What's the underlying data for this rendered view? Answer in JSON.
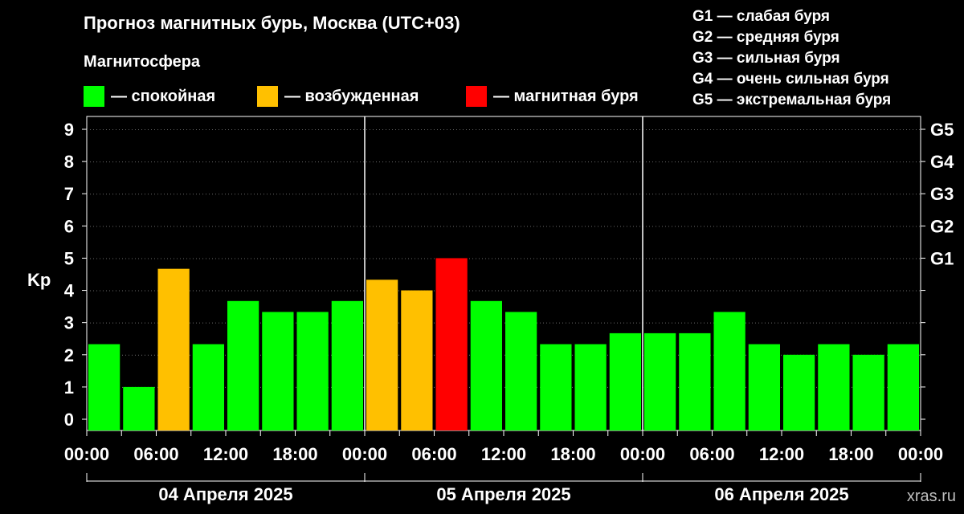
{
  "title": "Прогноз магнитных бурь, Москва (UTC+03)",
  "subtitle": "Магнитосфера",
  "legend": [
    {
      "label": "— спокойная",
      "color": "#00ff00"
    },
    {
      "label": "— возбужденная",
      "color": "#ffc000"
    },
    {
      "label": "— магнитная буря",
      "color": "#ff0000"
    }
  ],
  "g_legend": [
    "G1 — слабая буря",
    "G2 — средняя буря",
    "G3 — сильная буря",
    "G4 — очень сильная буря",
    "G5 — экстремальная буря"
  ],
  "watermark": "xras.ru",
  "chart_data": {
    "type": "bar",
    "ylabel": "Kp",
    "ylim": [
      0,
      9
    ],
    "y_ticks": [
      "0",
      "1",
      "2",
      "3",
      "4",
      "5",
      "6",
      "7",
      "8",
      "9"
    ],
    "right_axis_labels": [
      {
        "value": 5,
        "label": "G1"
      },
      {
        "value": 6,
        "label": "G2"
      },
      {
        "value": 7,
        "label": "G3"
      },
      {
        "value": 8,
        "label": "G4"
      },
      {
        "value": 9,
        "label": "G5"
      }
    ],
    "x_tick_labels": [
      "00:00",
      "06:00",
      "12:00",
      "18:00",
      "00:00",
      "06:00",
      "12:00",
      "18:00",
      "00:00",
      "06:00",
      "12:00",
      "18:00",
      "00:00"
    ],
    "day_labels": [
      "04 Апреля 2025",
      "05 Апреля 2025",
      "06 Апреля 2025"
    ],
    "interval_hours": 3,
    "values": [
      2.33,
      1.0,
      4.67,
      2.33,
      3.67,
      3.33,
      3.33,
      3.67,
      4.33,
      4.0,
      5.0,
      3.67,
      3.33,
      2.33,
      2.33,
      2.67,
      2.67,
      2.67,
      3.33,
      2.33,
      2.0,
      2.33,
      2.0,
      2.33
    ],
    "colors": {
      "quiet": "#00ff00",
      "active": "#ffc000",
      "storm": "#ff0000"
    },
    "status": [
      "quiet",
      "quiet",
      "active",
      "quiet",
      "quiet",
      "quiet",
      "quiet",
      "quiet",
      "active",
      "active",
      "storm",
      "quiet",
      "quiet",
      "quiet",
      "quiet",
      "quiet",
      "quiet",
      "quiet",
      "quiet",
      "quiet",
      "quiet",
      "quiet",
      "quiet",
      "quiet"
    ]
  }
}
